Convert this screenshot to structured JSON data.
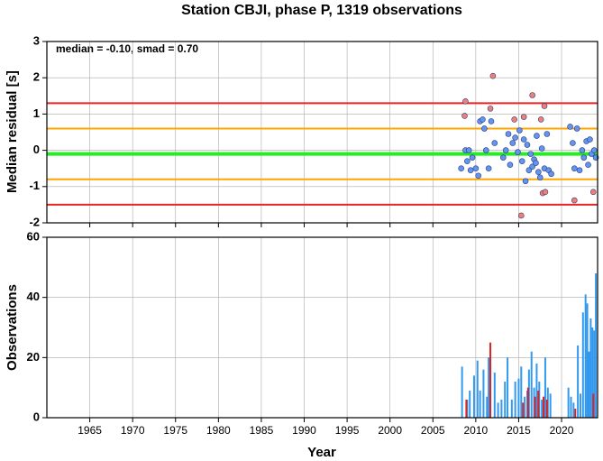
{
  "chart_data": [
    {
      "type": "scatter",
      "title": "Station CBJI, phase P, 1319 observations",
      "ylabel": "Median residual [s]",
      "annotation": "median = -0.10, smad = 0.70",
      "xlim": [
        1960,
        2024.2
      ],
      "xticks": [
        1965,
        1970,
        1975,
        1980,
        1985,
        1990,
        1995,
        2000,
        2005,
        2010,
        2015,
        2020
      ],
      "ylim": [
        -2,
        3
      ],
      "yticks": [
        -2,
        -1,
        0,
        1,
        2,
        3
      ],
      "grid": true,
      "hlines": [
        {
          "value": 1.3,
          "color": "#ee2222"
        },
        {
          "value": 0.6,
          "color": "#ffa500"
        },
        {
          "value": -0.1,
          "color": "#22ee22"
        },
        {
          "value": -0.8,
          "color": "#ffa500"
        },
        {
          "value": -1.5,
          "color": "#ee2222"
        }
      ],
      "series": [
        {
          "color": "#6495ed",
          "x": [
            2008.3,
            2008.8,
            2009.0,
            2009.2,
            2009.4,
            2009.6,
            2010.0,
            2010.3,
            2010.5,
            2010.8,
            2011.0,
            2011.2,
            2011.5,
            2011.8,
            2012.2,
            2013.2,
            2013.5,
            2013.8,
            2014.0,
            2014.3,
            2014.6,
            2014.9,
            2015.1,
            2015.4,
            2015.6,
            2015.8,
            2016.0,
            2016.2,
            2016.4,
            2016.6,
            2016.8,
            2017.0,
            2017.1,
            2017.3,
            2017.5,
            2017.7,
            2018.0,
            2018.3,
            2018.5,
            2018.8,
            2021.0,
            2021.3,
            2021.5,
            2021.8,
            2022.1,
            2022.4,
            2022.6,
            2022.9,
            2023.1,
            2023.3,
            2023.5,
            2023.8,
            2024.0
          ],
          "values": [
            -0.5,
            0.0,
            -0.3,
            0.0,
            -0.55,
            -0.2,
            -0.5,
            -0.7,
            0.8,
            0.85,
            0.6,
            0.0,
            -0.5,
            0.8,
            0.2,
            -0.2,
            0.0,
            0.45,
            -0.4,
            0.2,
            0.35,
            -0.05,
            0.55,
            -0.3,
            0.3,
            -0.85,
            0.15,
            -0.55,
            -0.1,
            -0.45,
            -0.25,
            -0.35,
            0.4,
            -0.6,
            -0.75,
            0.05,
            -0.5,
            0.45,
            -0.55,
            -0.65,
            0.65,
            0.2,
            -0.5,
            0.6,
            -0.55,
            0.0,
            -0.2,
            0.25,
            -0.4,
            0.3,
            -0.1,
            0.0,
            -0.2
          ]
        },
        {
          "color": "#f08070",
          "x": [
            2008.8,
            2008.7,
            2011.7,
            2012.0,
            2014.5,
            2015.3,
            2015.6,
            2016.6,
            2017.6,
            2018.0,
            2017.8,
            2018.1,
            2021.5,
            2023.7
          ],
          "values": [
            1.35,
            0.95,
            1.15,
            2.05,
            0.85,
            -1.8,
            0.92,
            1.52,
            0.85,
            1.22,
            -1.18,
            -1.15,
            -1.38,
            -1.15
          ]
        }
      ]
    },
    {
      "type": "bar",
      "xlabel": "Year",
      "ylabel": "Observations",
      "xlim": [
        1960,
        2024.2
      ],
      "xticks": [
        1965,
        1970,
        1975,
        1980,
        1985,
        1990,
        1995,
        2000,
        2005,
        2010,
        2015,
        2020
      ],
      "ylim": [
        0,
        60
      ],
      "yticks": [
        0,
        20,
        40,
        60
      ],
      "grid": true,
      "series": [
        {
          "color": "#3399ee",
          "x": [
            2008.4,
            2009.0,
            2009.3,
            2009.8,
            2010.2,
            2010.5,
            2010.9,
            2011.3,
            2011.5,
            2012.2,
            2012.6,
            2013.0,
            2013.4,
            2013.7,
            2014.2,
            2014.6,
            2015.0,
            2015.3,
            2015.7,
            2016.0,
            2016.2,
            2016.5,
            2016.8,
            2017.1,
            2017.4,
            2017.7,
            2018.1,
            2018.4,
            2018.7,
            2020.8,
            2021.1,
            2021.4,
            2021.9,
            2022.2,
            2022.5,
            2022.8,
            2023.0,
            2023.2,
            2023.4,
            2023.6,
            2023.8,
            2024.0
          ],
          "values": [
            17,
            6,
            9,
            14,
            19,
            9,
            16,
            7,
            20,
            15,
            5,
            6,
            12,
            20,
            6,
            12,
            13,
            17,
            7,
            9,
            16,
            22,
            10,
            18,
            12,
            6,
            20,
            10,
            8,
            10,
            7,
            5,
            24,
            8,
            35,
            41,
            38,
            22,
            33,
            30,
            29,
            48
          ]
        },
        {
          "color": "#dd2222",
          "x": [
            2008.9,
            2011.7,
            2015.5,
            2016.1,
            2016.9,
            2017.3,
            2017.9,
            2018.3,
            2021.6,
            2023.7
          ],
          "values": [
            6,
            25,
            5,
            10,
            7,
            9,
            7,
            6,
            3,
            8
          ]
        }
      ]
    }
  ]
}
